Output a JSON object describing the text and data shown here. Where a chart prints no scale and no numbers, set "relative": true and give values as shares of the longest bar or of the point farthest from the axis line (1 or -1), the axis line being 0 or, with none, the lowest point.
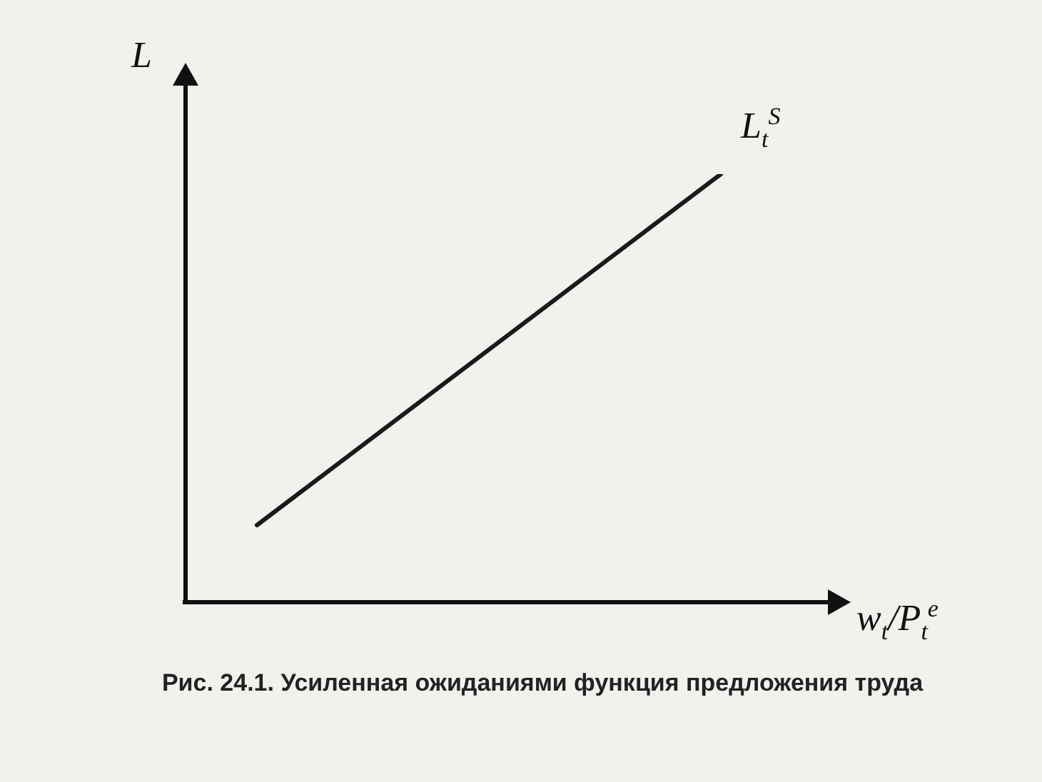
{
  "chart_data": {
    "type": "line",
    "title": "Рис. 24.1. Усиленная ожиданиями функция предложения труда",
    "xlabel": "w$_{t}$/P$_{t}$$^{e}$",
    "ylabel": "L",
    "categories": [
      null,
      null
    ],
    "relative": true,
    "legend": false,
    "marker": "none",
    "line_style": "solid",
    "series": [
      {
        "name": "L$_{t}$$^{S}$",
        "color": "#1a1a1a",
        "values": [
          0.18,
          1
        ]
      }
    ]
  }
}
